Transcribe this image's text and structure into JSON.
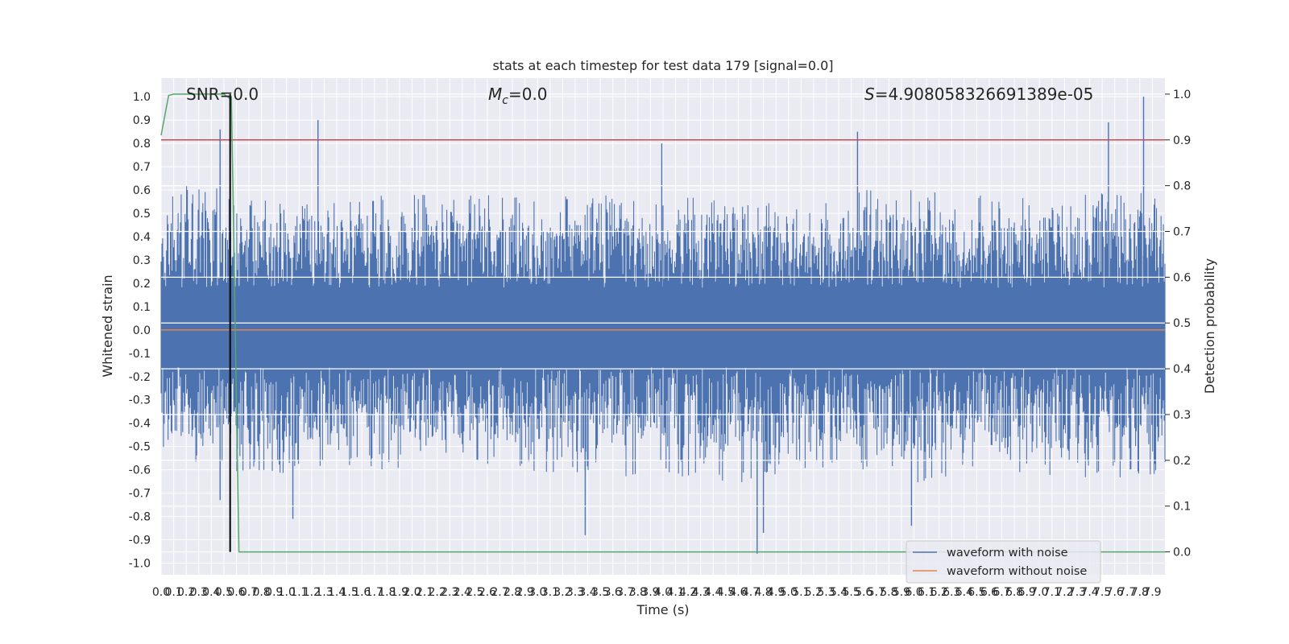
{
  "chart_data": {
    "type": "line",
    "title": "stats at each timestep for test data 179 [signal=0.0]",
    "xlabel": "Time (s)",
    "ylabel_left": "Whitened strain",
    "ylabel_right": "Detection probability",
    "xlim": [
      0,
      8
    ],
    "ylim_left": [
      -1.05,
      1.08
    ],
    "ylim_right": [
      -0.05,
      1.035
    ],
    "grid": true,
    "background": "#eaeaf2",
    "x_ticks": [
      "0.0",
      "0.1",
      "0.2",
      "0.3",
      "0.4",
      "0.5",
      "0.6",
      "0.7",
      "0.8",
      "0.9",
      "1.0",
      "1.1",
      "1.2",
      "1.3",
      "1.4",
      "1.5",
      "1.6",
      "1.7",
      "1.8",
      "1.9",
      "2.0",
      "2.1",
      "2.2",
      "2.3",
      "2.4",
      "2.5",
      "2.6",
      "2.7",
      "2.8",
      "2.9",
      "3.0",
      "3.1",
      "3.2",
      "3.3",
      "3.4",
      "3.5",
      "3.6",
      "3.7",
      "3.8",
      "3.9",
      "4.0",
      "4.1",
      "4.2",
      "4.3",
      "4.4",
      "4.5",
      "4.6",
      "4.7",
      "4.8",
      "4.9",
      "5.0",
      "5.1",
      "5.2",
      "5.3",
      "5.4",
      "5.5",
      "5.6",
      "5.7",
      "5.8",
      "5.9",
      "6.0",
      "6.1",
      "6.2",
      "6.3",
      "6.4",
      "6.5",
      "6.6",
      "6.7",
      "6.8",
      "6.9",
      "7.0",
      "7.1",
      "7.2",
      "7.3",
      "7.4",
      "7.5",
      "7.6",
      "7.7",
      "7.8",
      "7.9"
    ],
    "y_ticks_left": [
      "1.0",
      "0.9",
      "0.8",
      "0.7",
      "0.6",
      "0.5",
      "0.4",
      "0.3",
      "0.2",
      "0.1",
      "0.0",
      "-0.1",
      "-0.2",
      "-0.3",
      "-0.4",
      "-0.5",
      "-0.6",
      "-0.7",
      "-0.8",
      "-0.9",
      "-1.0"
    ],
    "y_ticks_right": [
      "1.0",
      "0.9",
      "0.8",
      "0.7",
      "0.6",
      "0.5",
      "0.4",
      "0.3",
      "0.2",
      "0.1",
      "0.0"
    ],
    "annotations": {
      "snr": "SNR=0.0",
      "mc_symbol": "M",
      "mc_subscript": "c",
      "mc_value": "=0.0",
      "s_symbol": "S",
      "s_value": "=4.908058326691389e-05"
    },
    "series": [
      {
        "name": "waveform with noise",
        "axis": "left",
        "color": "#4c72b0",
        "notable_peaks": [
          {
            "x": 0.47,
            "y": 0.86
          },
          {
            "x": 1.25,
            "y": 0.9
          },
          {
            "x": 3.99,
            "y": 0.8
          },
          {
            "x": 5.55,
            "y": 0.85
          },
          {
            "x": 7.55,
            "y": 0.89
          },
          {
            "x": 7.83,
            "y": 1.0
          }
        ],
        "notable_troughs": [
          {
            "x": 0.47,
            "y": -0.73
          },
          {
            "x": 1.05,
            "y": -0.81
          },
          {
            "x": 3.38,
            "y": -0.88
          },
          {
            "x": 4.75,
            "y": -0.96
          },
          {
            "x": 4.8,
            "y": -0.87
          },
          {
            "x": 5.98,
            "y": -0.84
          }
        ],
        "envelope_upper": [
          [
            0.0,
            0.55
          ],
          [
            0.2,
            0.62
          ],
          [
            0.4,
            0.65
          ],
          [
            0.6,
            0.55
          ],
          [
            1.0,
            0.58
          ],
          [
            1.4,
            0.57
          ],
          [
            2.0,
            0.58
          ],
          [
            2.4,
            0.6
          ],
          [
            3.0,
            0.57
          ],
          [
            3.6,
            0.58
          ],
          [
            4.0,
            0.58
          ],
          [
            4.6,
            0.57
          ],
          [
            5.0,
            0.55
          ],
          [
            5.6,
            0.6
          ],
          [
            6.0,
            0.6
          ],
          [
            6.6,
            0.58
          ],
          [
            7.0,
            0.58
          ],
          [
            7.6,
            0.62
          ],
          [
            8.0,
            0.58
          ]
        ],
        "envelope_lower": [
          [
            0.0,
            -0.55
          ],
          [
            0.2,
            -0.55
          ],
          [
            0.4,
            -0.62
          ],
          [
            0.6,
            -0.62
          ],
          [
            1.0,
            -0.65
          ],
          [
            1.4,
            -0.6
          ],
          [
            2.0,
            -0.6
          ],
          [
            2.4,
            -0.58
          ],
          [
            3.0,
            -0.62
          ],
          [
            3.6,
            -0.64
          ],
          [
            4.0,
            -0.62
          ],
          [
            4.6,
            -0.66
          ],
          [
            5.0,
            -0.62
          ],
          [
            5.6,
            -0.6
          ],
          [
            6.0,
            -0.66
          ],
          [
            6.6,
            -0.62
          ],
          [
            7.0,
            -0.62
          ],
          [
            7.6,
            -0.64
          ],
          [
            8.0,
            -0.62
          ]
        ]
      },
      {
        "name": "waveform without noise",
        "axis": "left",
        "color": "#dd8452",
        "x": [
          0,
          8
        ],
        "y": [
          0.0,
          0.0
        ]
      },
      {
        "axis": "right",
        "color": "#55a868",
        "x": [
          0.0,
          0.06,
          0.1,
          0.2,
          0.3,
          0.4,
          0.5,
          0.55,
          0.56,
          0.62,
          8.0
        ],
        "y": [
          0.91,
          0.997,
          1.0,
          1.0,
          1.0,
          1.0,
          1.0,
          0.99,
          0.995,
          0.0,
          0.0
        ]
      }
    ],
    "threshold_line": {
      "axis": "right",
      "value": 0.9,
      "color": "#c44e52"
    },
    "marker_line": {
      "x": 0.55,
      "color": "#000000"
    },
    "legend": {
      "placement": "lower right",
      "entries": [
        "waveform with noise",
        "waveform without noise"
      ]
    }
  }
}
